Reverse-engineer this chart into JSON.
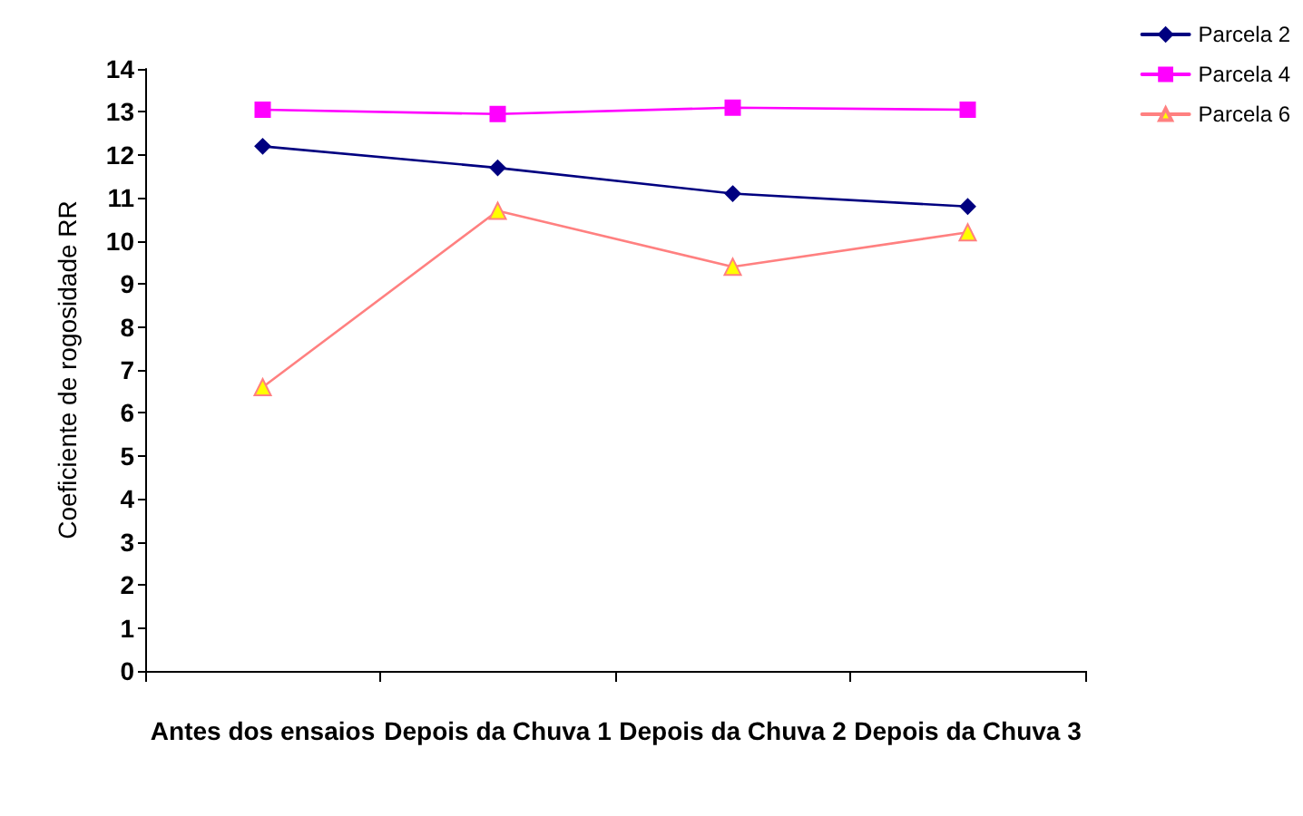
{
  "chart_data": {
    "type": "line",
    "ylabel": "Coeficiente de rogosidade RR",
    "categories": [
      "Antes dos ensaios",
      "Depois da Chuva 1",
      "Depois da Chuva 2",
      "Depois da Chuva 3"
    ],
    "series": [
      {
        "name": "Parcela 2",
        "color": "#000080",
        "marker": "diamond",
        "values": [
          12.2,
          11.7,
          11.1,
          10.8
        ]
      },
      {
        "name": "Parcela 4",
        "color": "#ff00ff",
        "marker": "square",
        "values": [
          13.05,
          12.95,
          13.1,
          13.05
        ]
      },
      {
        "name": "Parcela 6",
        "color": "#ff8080",
        "marker": "triangle",
        "values": [
          6.6,
          10.7,
          9.4,
          10.2
        ]
      }
    ],
    "ylim": [
      0,
      14
    ],
    "yticks": [
      0,
      1,
      2,
      3,
      4,
      5,
      6,
      7,
      8,
      9,
      10,
      11,
      12,
      13,
      14
    ],
    "grid": false,
    "legend": "top right"
  }
}
